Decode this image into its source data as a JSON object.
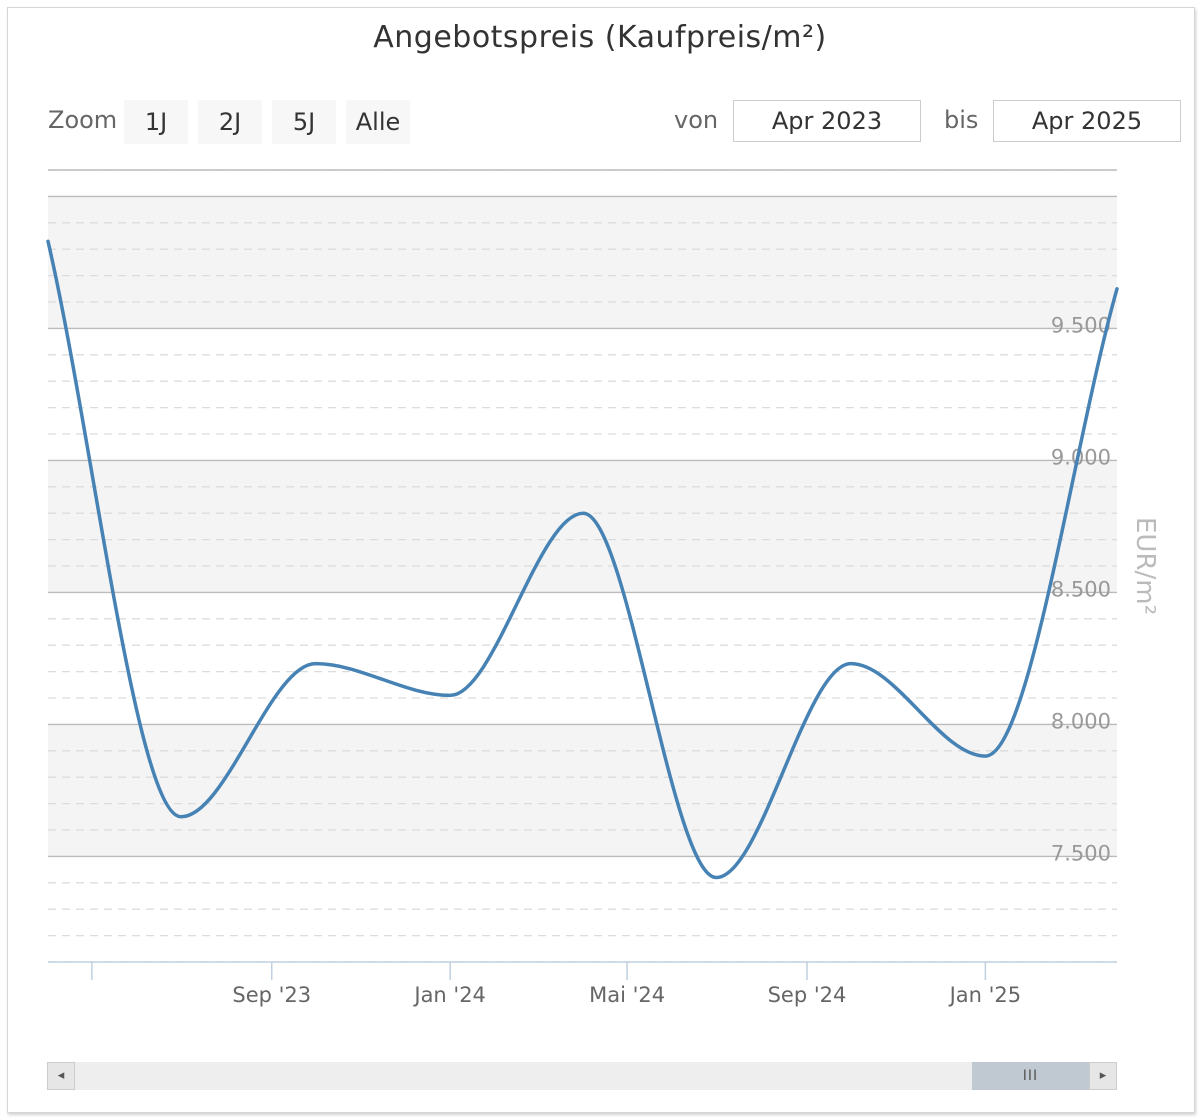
{
  "title": "Angebotspreis (Kaufpreis/m²)",
  "controls": {
    "zoom_label": "Zoom",
    "zoom_buttons": [
      "1J",
      "2J",
      "5J",
      "Alle"
    ],
    "from_label": "von",
    "from_value": "Apr 2023",
    "to_label": "bis",
    "to_value": "Apr 2025"
  },
  "scrollbar": {
    "left_arrow": "◂",
    "right_arrow": "▸",
    "thumb_grip": "III"
  },
  "colors": {
    "line": "#4682b4",
    "band": "#f4f4f4",
    "gridline": "#bbbbbb",
    "minor_gridline": "#dcdcdc",
    "axis": "#c0d0e0",
    "tick_label": "#666666",
    "y_tick_label": "#999999",
    "y_title": "#bbbbbb"
  },
  "chart_data": {
    "type": "line",
    "title": "Angebotspreis (Kaufpreis/m²)",
    "ylabel": "EUR/m²",
    "xlabel": "",
    "ylim": [
      7100,
      10100
    ],
    "xlim": [
      "2023-04-01",
      "2025-04-01"
    ],
    "y_ticks": [
      {
        "value": 7500,
        "label": "7.500"
      },
      {
        "value": 8000,
        "label": "8.000"
      },
      {
        "value": 8500,
        "label": "8.500"
      },
      {
        "value": 9000,
        "label": "9.000"
      },
      {
        "value": 9500,
        "label": "9.500"
      }
    ],
    "x_ticks": [
      {
        "date": "2023-09-01",
        "label": "Sep '23"
      },
      {
        "date": "2024-01-01",
        "label": "Jan '24"
      },
      {
        "date": "2024-05-01",
        "label": "Mai '24"
      },
      {
        "date": "2024-09-01",
        "label": "Sep '24"
      },
      {
        "date": "2025-01-01",
        "label": "Jan '25"
      }
    ],
    "series": [
      {
        "points": [
          {
            "x": "2023-04-01",
            "y": 9830
          },
          {
            "x": "2023-07-01",
            "y": 7650
          },
          {
            "x": "2023-10-01",
            "y": 8230
          },
          {
            "x": "2024-01-01",
            "y": 8110
          },
          {
            "x": "2024-04-01",
            "y": 8800
          },
          {
            "x": "2024-07-01",
            "y": 7420
          },
          {
            "x": "2024-10-01",
            "y": 8230
          },
          {
            "x": "2025-01-01",
            "y": 7880
          },
          {
            "x": "2025-04-01",
            "y": 9650
          }
        ]
      }
    ],
    "grid": true,
    "alternate_bands": true,
    "legend": "none"
  }
}
